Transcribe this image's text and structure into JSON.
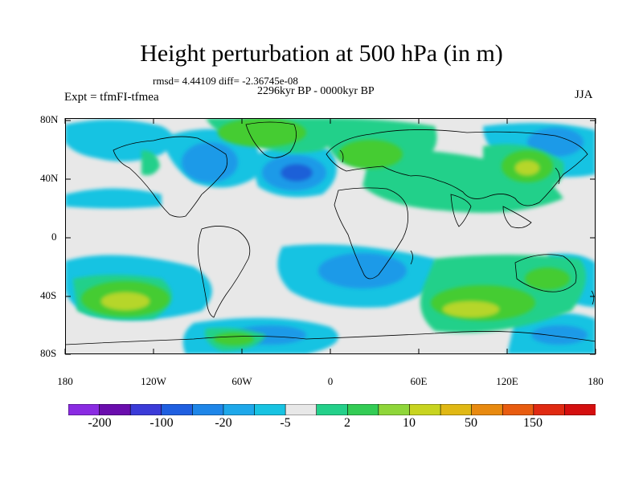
{
  "header": {
    "title": "Height perturbation at 500 hPa (in m)",
    "stats": "rmsd= 4.44109 diff= -2.36745e-08",
    "period": "2296kyr BP - 0000kyr BP",
    "experiment": "Expt = tfmFI-tfmea",
    "season": "JJA"
  },
  "axes": {
    "y_ticks": [
      "80N",
      "40N",
      "0",
      "40S",
      "80S"
    ],
    "x_ticks": [
      "180",
      "120W",
      "60W",
      "0",
      "60E",
      "120E",
      "180"
    ]
  },
  "colorbar": {
    "labels": [
      "-200",
      "-100",
      "-20",
      "-5",
      "2",
      "10",
      "50",
      "150"
    ],
    "colors": [
      "#8a2be2",
      "#6a0dad",
      "#3b3bd8",
      "#1f5fe0",
      "#1e86e8",
      "#1ea8ea",
      "#18c3e2",
      "#e8e8e8",
      "#24d08a",
      "#33cc55",
      "#8fd63a",
      "#c8d420",
      "#e0b814",
      "#e88a10",
      "#e85c10",
      "#e02a12",
      "#d40f0f"
    ]
  },
  "colors": {
    "background": "#e8e8e8",
    "negative_light": "#18c3e2",
    "negative_mid": "#1e9ae8",
    "negative_strong": "#1f60d8",
    "positive_light": "#24d08a",
    "positive_mid": "#44cc33",
    "positive_strong": "#b6d62a"
  }
}
